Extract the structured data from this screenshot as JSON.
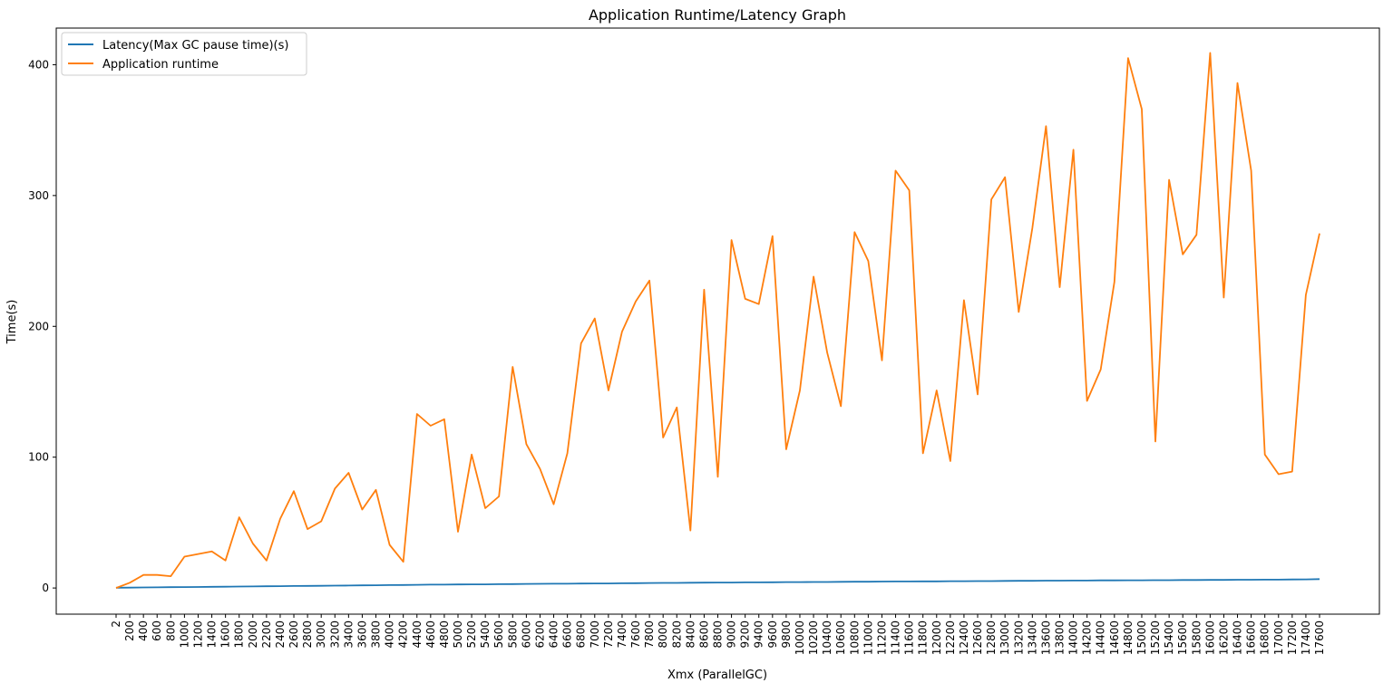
{
  "chart_data": {
    "type": "line",
    "title": "Application Runtime/Latency Graph",
    "xlabel": "Xmx (ParallelGC)",
    "ylabel": "Time(s)",
    "ylim": [
      -20,
      428
    ],
    "yticks": [
      0,
      100,
      200,
      300,
      400
    ],
    "grid": false,
    "legend_position": "top-left",
    "x": [
      2,
      200,
      400,
      600,
      800,
      1000,
      1200,
      1400,
      1600,
      1800,
      2000,
      2200,
      2400,
      2600,
      2800,
      3000,
      3200,
      3400,
      3600,
      3800,
      4000,
      4200,
      4400,
      4600,
      4800,
      5000,
      5200,
      5400,
      5600,
      5800,
      6000,
      6200,
      6400,
      6600,
      6800,
      7000,
      7200,
      7400,
      7600,
      7800,
      8000,
      8200,
      8400,
      8600,
      8800,
      9000,
      9200,
      9400,
      9600,
      9800,
      10000,
      10200,
      10400,
      10600,
      10800,
      11000,
      11200,
      11400,
      11600,
      11800,
      12000,
      12200,
      12400,
      12600,
      12800,
      13000,
      13200,
      13400,
      13600,
      13800,
      14000,
      14200,
      14400,
      14600,
      14800,
      15000,
      15200,
      15400,
      15600,
      15800,
      16000,
      16200,
      16400,
      16600,
      16800,
      17000,
      17200,
      17400,
      17600
    ],
    "series": [
      {
        "name": "Latency(Max GC pause time)(s)",
        "color": "#1f77b4",
        "values": [
          0.2,
          0.3,
          0.4,
          0.5,
          0.6,
          0.7,
          0.8,
          0.9,
          1.0,
          1.1,
          1.2,
          1.3,
          1.4,
          1.5,
          1.6,
          1.7,
          1.8,
          1.9,
          2.0,
          2.1,
          2.2,
          2.3,
          2.4,
          2.6,
          2.6,
          2.7,
          2.8,
          2.8,
          2.9,
          3.0,
          3.1,
          3.2,
          3.3,
          3.3,
          3.4,
          3.5,
          3.5,
          3.6,
          3.7,
          3.8,
          3.9,
          3.9,
          4.0,
          4.1,
          4.2,
          4.2,
          4.3,
          4.3,
          4.4,
          4.5,
          4.5,
          4.6,
          4.6,
          4.7,
          4.8,
          4.8,
          4.9,
          5.0,
          5.0,
          5.1,
          5.1,
          5.2,
          5.2,
          5.3,
          5.3,
          5.4,
          5.5,
          5.5,
          5.6,
          5.6,
          5.7,
          5.7,
          5.8,
          5.8,
          5.9,
          5.9,
          6.0,
          6.0,
          6.1,
          6.1,
          6.2,
          6.2,
          6.3,
          6.3,
          6.4,
          6.4,
          6.5,
          6.6,
          6.8
        ]
      },
      {
        "name": "Application runtime",
        "color": "#ff7f0e",
        "values": [
          0,
          4,
          10,
          10,
          9,
          24,
          26,
          28,
          21,
          54,
          34,
          21,
          53,
          74,
          45,
          51,
          76,
          88,
          60,
          75,
          33,
          20,
          133,
          124,
          129,
          43,
          102,
          61,
          70,
          169,
          110,
          91,
          64,
          103,
          187,
          206,
          151,
          196,
          219,
          235,
          115,
          138,
          44,
          228,
          85,
          266,
          221,
          217,
          269,
          106,
          151,
          238,
          180,
          139,
          272,
          250,
          174,
          319,
          304,
          103,
          151,
          97,
          220,
          148,
          297,
          314,
          211,
          275,
          353,
          230,
          335,
          143,
          167,
          234,
          405,
          366,
          112,
          312,
          255,
          270,
          409,
          222,
          386,
          319,
          102,
          87,
          89,
          224,
          271
        ]
      }
    ]
  }
}
